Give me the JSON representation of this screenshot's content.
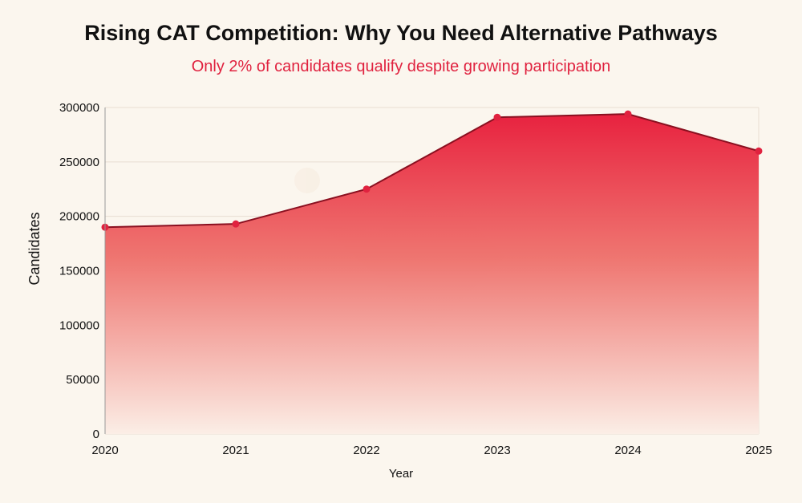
{
  "colors": {
    "background": "#fbf6ee",
    "accent": "#e0223f",
    "line": "#8a1020",
    "area_top": "#e8223f",
    "area_bottom": "#fbeee6"
  },
  "chart_data": {
    "type": "area",
    "title": "Rising CAT Competition: Why You Need Alternative Pathways",
    "subtitle": "Only 2% of candidates qualify despite growing participation",
    "xlabel": "Year",
    "ylabel": "Candidates",
    "x": [
      "2020",
      "2021",
      "2022",
      "2023",
      "2024",
      "2025"
    ],
    "series": [
      {
        "values": [
          190000,
          193000,
          225000,
          291000,
          294000,
          260000
        ]
      }
    ],
    "ylim": [
      0,
      300000
    ],
    "yticks": [
      0,
      50000,
      100000,
      150000,
      200000,
      250000,
      300000
    ],
    "grid": true,
    "legend": "none"
  }
}
